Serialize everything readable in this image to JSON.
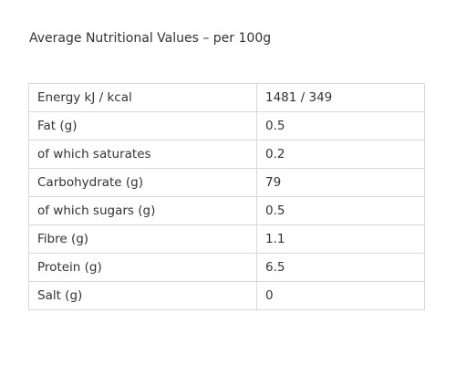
{
  "header": {
    "title": "Average Nutritional Values – per 100g"
  },
  "table": {
    "rows": [
      [
        "Energy kJ / kcal",
        "1481 / 349"
      ],
      [
        "Fat (g)",
        "0.5"
      ],
      [
        "of which saturates",
        "0.2"
      ],
      [
        "Carbohydrate (g)",
        "79"
      ],
      [
        "of which sugars (g)",
        "0.5"
      ],
      [
        "Fibre (g)",
        "1.1"
      ],
      [
        "Protein (g)",
        "6.5"
      ],
      [
        "Salt (g)",
        "0"
      ]
    ]
  }
}
